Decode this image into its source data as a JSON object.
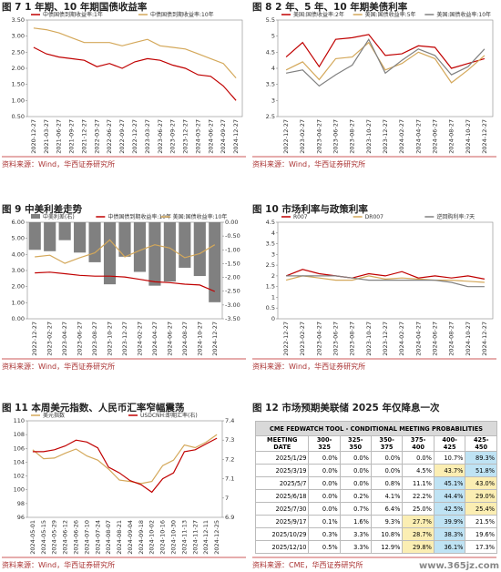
{
  "watermark": "www.365jz.com",
  "chart_data": [
    {
      "type": "line",
      "title": "图 7 1 年期、10 年期国债收益率",
      "source": "资料来源：Wind，华西证券研究所",
      "categories": [
        "2020-12-27",
        "2021-03-27",
        "2021-06-27",
        "2021-09-27",
        "2021-12-27",
        "2022-03-27",
        "2022-06-27",
        "2022-09-27",
        "2022-12-27",
        "2023-03-27",
        "2023-06-27",
        "2023-09-27",
        "2023-12-27",
        "2024-03-27",
        "2024-06-27",
        "2024-09-27",
        "2024-12-27"
      ],
      "series": [
        {
          "name": "中债国债到期收益率:1年",
          "color": "#c00000",
          "values": [
            2.65,
            2.45,
            2.35,
            2.3,
            2.25,
            2.05,
            2.15,
            2.0,
            2.2,
            2.3,
            2.25,
            2.1,
            2.0,
            1.8,
            1.75,
            1.45,
            1.0
          ]
        },
        {
          "name": "中债国债到期收益率:10年",
          "color": "#d4a85a",
          "values": [
            3.25,
            3.2,
            3.1,
            2.95,
            2.8,
            2.8,
            2.8,
            2.7,
            2.8,
            2.9,
            2.7,
            2.65,
            2.6,
            2.45,
            2.3,
            2.15,
            1.7
          ]
        }
      ],
      "ylim": [
        0.5,
        3.5
      ],
      "yticks": [
        {
          "value": 0.5,
          "label": "0.50"
        },
        {
          "value": 1,
          "label": "1.00"
        },
        {
          "value": 1.5,
          "label": "1.50"
        },
        {
          "value": 2,
          "label": "2.00"
        },
        {
          "value": 2.5,
          "label": "2.50"
        },
        {
          "value": 3,
          "label": "3.00"
        },
        {
          "value": 3.5,
          "label": "3.50"
        }
      ]
    },
    {
      "type": "line",
      "title": "图 8 2 年、5 年、10 年期美债利率",
      "source": "资料来源：Wind，华西证券研究所",
      "categories": [
        "2022-12-27",
        "2023-02-27",
        "2023-04-27",
        "2023-06-27",
        "2023-08-27",
        "2023-10-27",
        "2023-12-27",
        "2024-02-27",
        "2024-04-27",
        "2024-06-27",
        "2024-08-27",
        "2024-10-27",
        "2024-12-27"
      ],
      "series": [
        {
          "name": "美国:国债收益率:2年",
          "color": "#c00000",
          "values": [
            4.35,
            4.8,
            4.05,
            4.9,
            4.95,
            5.05,
            4.4,
            4.45,
            4.7,
            4.65,
            4.0,
            4.15,
            4.3
          ]
        },
        {
          "name": "美国:国债收益率:5年",
          "color": "#d4a85a",
          "values": [
            3.95,
            4.2,
            3.65,
            4.3,
            4.35,
            4.8,
            3.95,
            4.15,
            4.5,
            4.3,
            3.55,
            3.95,
            4.4
          ]
        },
        {
          "name": "美国:国债收益率:10年",
          "color": "#808080",
          "values": [
            3.85,
            3.95,
            3.45,
            3.8,
            4.1,
            4.9,
            3.85,
            4.25,
            4.6,
            4.4,
            3.8,
            4.05,
            4.6
          ]
        }
      ],
      "ylim": [
        2.5,
        5.5
      ],
      "yticks": [
        2.5,
        3,
        3.5,
        4,
        4.5,
        5,
        5.5
      ]
    },
    {
      "type": "combo",
      "title": "图 9 中美利差走势",
      "source": "资料来源：Wind，华西证券研究所",
      "categories": [
        "2022-12-27",
        "2023-02-27",
        "2023-04-27",
        "2023-06-27",
        "2023-08-27",
        "2023-10-27",
        "2023-12-27",
        "2024-02-27",
        "2024-04-27",
        "2024-06-27",
        "2024-08-27",
        "2024-10-27",
        "2024-12-27"
      ],
      "series": [
        {
          "name": "中美利差(右)",
          "color": "#808080",
          "kind": "bar",
          "axis": "y2",
          "values": [
            -1.0,
            -1.05,
            -0.65,
            -1.1,
            -1.45,
            -2.25,
            -1.25,
            -1.8,
            -2.3,
            -2.15,
            -1.65,
            -1.95,
            -2.9
          ]
        },
        {
          "name": "中债国债到期收益率:10年",
          "color": "#c00000",
          "kind": "line",
          "values": [
            2.85,
            2.9,
            2.8,
            2.7,
            2.65,
            2.65,
            2.6,
            2.45,
            2.3,
            2.25,
            2.15,
            2.1,
            1.7
          ]
        },
        {
          "name": "美国:国债收益率:10年",
          "color": "#d4a85a",
          "kind": "line",
          "values": [
            3.85,
            3.95,
            3.45,
            3.8,
            4.1,
            4.9,
            3.85,
            4.25,
            4.6,
            4.4,
            3.8,
            4.05,
            4.6
          ]
        }
      ],
      "ylim": [
        0,
        6
      ],
      "yticks": [
        {
          "value": 0,
          "label": "0.00"
        },
        {
          "value": 1,
          "label": "1.00"
        },
        {
          "value": 2,
          "label": "2.00"
        },
        {
          "value": 3,
          "label": "3.00"
        },
        {
          "value": 4,
          "label": "4.00"
        },
        {
          "value": 5,
          "label": "5.00"
        },
        {
          "value": 6,
          "label": "6.00"
        }
      ],
      "y2lim": [
        -3.5,
        0
      ],
      "y2ticks": [
        {
          "value": 0,
          "label": "0.00"
        },
        {
          "value": -0.5,
          "label": "-0.50"
        },
        {
          "value": -1,
          "label": "-1.00"
        },
        {
          "value": -1.5,
          "label": "-1.50"
        },
        {
          "value": -2,
          "label": "-2.00"
        },
        {
          "value": -2.5,
          "label": "-2.50"
        },
        {
          "value": -3,
          "label": "-3.00"
        },
        {
          "value": -3.5,
          "label": "-3.50"
        }
      ]
    },
    {
      "type": "line",
      "title": "图 10 市场利率与政策利率",
      "source": "资料来源：Wind，华西证券研究所",
      "categories": [
        "2022-12-27",
        "2023-02-27",
        "2023-04-27",
        "2023-06-27",
        "2023-08-27",
        "2023-10-27",
        "2023-12-27",
        "2024-02-27",
        "2024-04-27",
        "2024-06-27",
        "2024-08-27",
        "2024-10-27",
        "2024-12-27"
      ],
      "series": [
        {
          "name": "R007",
          "color": "#c00000",
          "values": [
            2.0,
            2.3,
            2.1,
            2.0,
            1.9,
            2.1,
            2.0,
            2.2,
            1.9,
            2.0,
            1.9,
            2.0,
            1.85
          ]
        },
        {
          "name": "DR007",
          "color": "#d4a85a",
          "values": [
            1.8,
            2.0,
            1.9,
            1.8,
            1.8,
            2.0,
            1.85,
            1.9,
            1.85,
            1.8,
            1.8,
            1.75,
            1.7
          ]
        },
        {
          "name": "逆回购利率:7天",
          "color": "#808080",
          "values": [
            2.0,
            2.0,
            2.0,
            2.0,
            1.9,
            1.8,
            1.8,
            1.8,
            1.8,
            1.8,
            1.7,
            1.5,
            1.5
          ]
        }
      ],
      "ylim": [
        0,
        4.5
      ],
      "yticks": [
        0,
        0.5,
        1,
        1.5,
        2,
        2.5,
        3,
        3.5,
        4,
        4.5
      ]
    },
    {
      "type": "line",
      "title": "图 11 本周美元指数、人民币汇率窄幅震荡",
      "source": "资料来源：Wind，华西证券研究所",
      "categories": [
        "2024-05-01",
        "2024-05-15",
        "2024-05-29",
        "2024-06-12",
        "2024-06-26",
        "2024-07-10",
        "2024-07-24",
        "2024-08-07",
        "2024-08-21",
        "2024-09-04",
        "2024-09-18",
        "2024-10-02",
        "2024-10-16",
        "2024-10-30",
        "2024-11-13",
        "2024-11-27",
        "2024-12-11",
        "2024-12-25"
      ],
      "series": [
        {
          "name": "美元指数",
          "color": "#d4a85a",
          "values": [
            105.8,
            104.5,
            104.6,
            105.3,
            105.9,
            104.9,
            104.3,
            103.0,
            101.4,
            101.2,
            100.9,
            101.2,
            103.5,
            104.3,
            106.5,
            106.1,
            106.9,
            108.0
          ]
        },
        {
          "name": "USDCNH:即期汇率(右)",
          "color": "#c00000",
          "axis": "y2",
          "values": [
            7.24,
            7.24,
            7.25,
            7.27,
            7.3,
            7.29,
            7.26,
            7.16,
            7.13,
            7.09,
            7.07,
            7.03,
            7.1,
            7.13,
            7.24,
            7.25,
            7.28,
            7.31
          ]
        }
      ],
      "ylim": [
        96,
        110
      ],
      "yticks": [
        96,
        98,
        100,
        102,
        104,
        106,
        108,
        110
      ],
      "y2lim": [
        6.9,
        7.4
      ],
      "y2ticks": [
        6.9,
        7,
        7.1,
        7.2,
        7.3,
        7.4
      ]
    }
  ],
  "table_panel": {
    "title": "图 12 市场预期美联储 2025 年仅降息一次",
    "source": "资料来源：CME，华西证券研究所",
    "caption": "CME FEDWATCH TOOL - CONDITIONAL MEETING PROBABILITIES",
    "header": [
      "MEETING DATE",
      "300-325",
      "325-350",
      "350-375",
      "375-400",
      "400-425",
      "425-450"
    ],
    "rows": [
      [
        "2025/1/29",
        "0.0%",
        "0.0%",
        "0.0%",
        "0.0%",
        "10.7%",
        "89.3%"
      ],
      [
        "2025/3/19",
        "0.0%",
        "0.0%",
        "0.0%",
        "4.5%",
        "43.7%",
        "51.8%"
      ],
      [
        "2025/5/7",
        "0.0%",
        "0.0%",
        "0.8%",
        "11.1%",
        "45.1%",
        "43.0%"
      ],
      [
        "2025/6/18",
        "0.0%",
        "0.2%",
        "4.1%",
        "22.2%",
        "44.4%",
        "29.0%"
      ],
      [
        "2025/7/30",
        "0.0%",
        "0.7%",
        "6.4%",
        "25.0%",
        "42.5%",
        "25.4%"
      ],
      [
        "2025/9/17",
        "0.1%",
        "1.6%",
        "9.3%",
        "27.7%",
        "39.9%",
        "21.5%"
      ],
      [
        "2025/10/29",
        "0.3%",
        "3.3%",
        "10.8%",
        "28.7%",
        "38.3%",
        "19.6%"
      ],
      [
        "2025/12/10",
        "0.5%",
        "3.3%",
        "12.9%",
        "29.8%",
        "36.1%",
        "17.3%"
      ]
    ]
  }
}
